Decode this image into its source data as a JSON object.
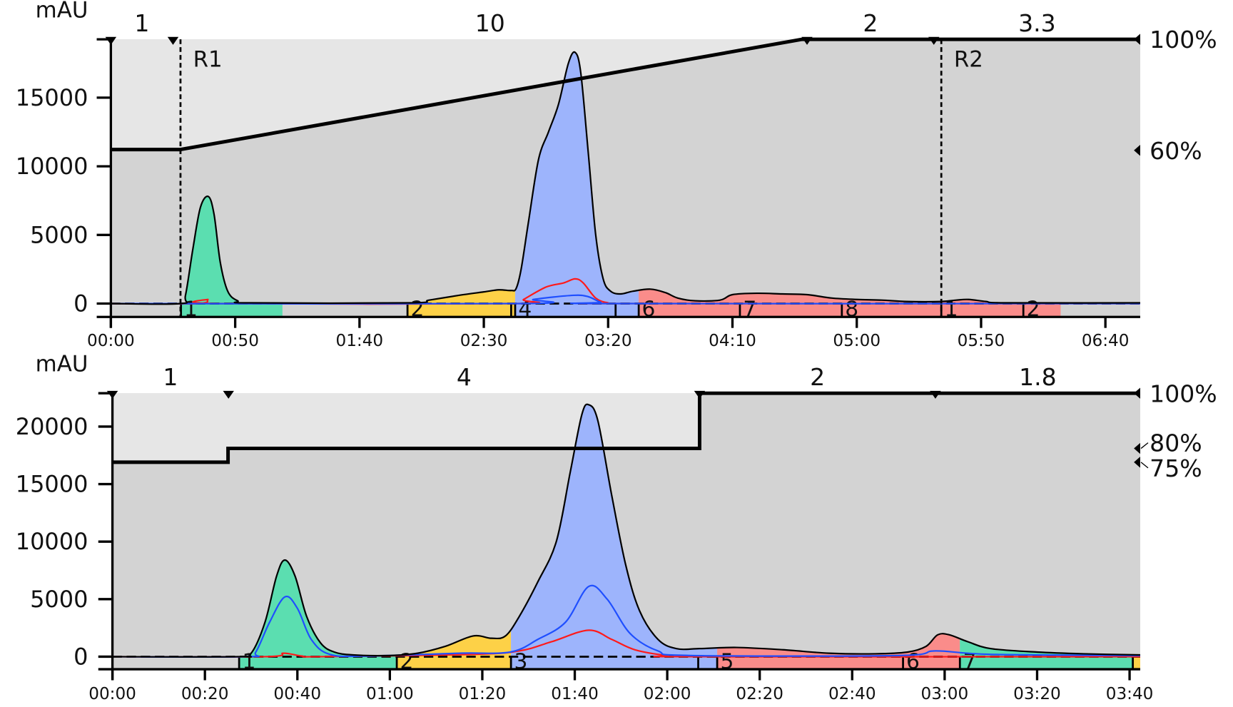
{
  "chart_data": [
    {
      "type": "area",
      "ylabel": "mAU",
      "xlim": [
        0,
        414
      ],
      "ylim": [
        0,
        19250
      ],
      "y_ticks": [
        0,
        5000,
        10000,
        15000
      ],
      "y_tick_labels": [
        "0",
        "5000",
        "10000",
        "15000"
      ],
      "x_ticks": [
        0,
        50,
        100,
        150,
        200,
        250,
        300,
        350,
        400
      ],
      "x_tick_labels": [
        "00:00",
        "00:50",
        "01:40",
        "02:30",
        "03:20",
        "04:10",
        "05:00",
        "05:50",
        "06:40"
      ],
      "right_axis": [
        {
          "value": 100,
          "label": "100%"
        },
        {
          "value": 60,
          "label": "60%"
        }
      ],
      "gradient_percent": [
        [
          0,
          60.3
        ],
        [
          28,
          60.3
        ],
        [
          278,
          100
        ],
        [
          414,
          100
        ]
      ],
      "phase_markers": [
        0,
        25,
        280,
        331,
        414
      ],
      "phase_labels": [
        "1",
        "10",
        "2",
        "3.3"
      ],
      "events": [
        {
          "t": 28,
          "label": "R1"
        },
        {
          "t": 334,
          "label": "R2"
        }
      ],
      "uv_trace": [
        [
          0,
          0
        ],
        [
          28,
          0
        ],
        [
          30,
          600
        ],
        [
          33,
          4000
        ],
        [
          36,
          7000
        ],
        [
          39.2,
          7800
        ],
        [
          41.5,
          6500
        ],
        [
          44,
          3000
        ],
        [
          47,
          900
        ],
        [
          51,
          200
        ],
        [
          56,
          50
        ],
        [
          120,
          50
        ],
        [
          128,
          250
        ],
        [
          140,
          600
        ],
        [
          150,
          850
        ],
        [
          156,
          1000
        ],
        [
          161,
          950
        ],
        [
          163,
          1100
        ],
        [
          165,
          2500
        ],
        [
          168,
          6000
        ],
        [
          172,
          10500
        ],
        [
          176,
          12500
        ],
        [
          180,
          14500
        ],
        [
          184,
          17500
        ],
        [
          186.7,
          18300
        ],
        [
          189,
          16800
        ],
        [
          192,
          11000
        ],
        [
          195,
          5000
        ],
        [
          198,
          1800
        ],
        [
          201,
          900
        ],
        [
          205,
          700
        ],
        [
          210,
          900
        ],
        [
          217,
          1050
        ],
        [
          223,
          800
        ],
        [
          228,
          400
        ],
        [
          235,
          200
        ],
        [
          245,
          250
        ],
        [
          250,
          650
        ],
        [
          260,
          750
        ],
        [
          270,
          700
        ],
        [
          280,
          650
        ],
        [
          290,
          400
        ],
        [
          300,
          300
        ],
        [
          310,
          250
        ],
        [
          320,
          150
        ],
        [
          334,
          150
        ],
        [
          340,
          250
        ],
        [
          345,
          300
        ],
        [
          352,
          150
        ],
        [
          360,
          50
        ],
        [
          414,
          50
        ]
      ],
      "red_trace": [
        [
          0,
          0
        ],
        [
          35,
          0
        ],
        [
          39,
          300
        ],
        [
          43,
          0
        ],
        [
          163,
          0
        ],
        [
          166,
          300
        ],
        [
          175,
          1200
        ],
        [
          182,
          1500
        ],
        [
          186.7,
          1800
        ],
        [
          190,
          1500
        ],
        [
          195,
          400
        ],
        [
          200,
          50
        ],
        [
          205,
          0
        ],
        [
          414,
          0
        ]
      ],
      "blue_trace": [
        [
          0,
          0
        ],
        [
          165,
          0
        ],
        [
          170,
          300
        ],
        [
          186,
          600
        ],
        [
          192,
          500
        ],
        [
          197,
          100
        ],
        [
          202,
          0
        ],
        [
          414,
          0
        ]
      ],
      "fractions": [
        {
          "start": 28.2,
          "end": 69,
          "label": "1",
          "color": "#5bdeb0"
        },
        {
          "start": 119.3,
          "end": 161,
          "label": "2",
          "color": "#fdd147"
        },
        {
          "start": 161,
          "end": 162.6,
          "label": null,
          "color": "#fdd147"
        },
        {
          "start": 162.6,
          "end": 203,
          "label": "4",
          "color": "#9db4fc"
        },
        {
          "start": 203,
          "end": 212.3,
          "label": null,
          "color": "#9db4fc"
        },
        {
          "start": 212.3,
          "end": 253,
          "label": "6",
          "color": "#fa8c8a"
        },
        {
          "start": 253,
          "end": 294,
          "label": "7",
          "color": "#fa8c8a"
        },
        {
          "start": 294,
          "end": 334,
          "label": "8",
          "color": "#fa8c8a"
        },
        {
          "start": 334,
          "end": 367,
          "label": "1",
          "color": "#fa8c8a"
        },
        {
          "start": 367,
          "end": 382,
          "label": "2",
          "color": "#fa8c8a"
        }
      ]
    },
    {
      "type": "area",
      "ylabel": "mAU",
      "xlim": [
        0,
        222.3
      ],
      "ylim": [
        0,
        22900
      ],
      "y_ticks": [
        0,
        5000,
        10000,
        15000,
        20000
      ],
      "y_tick_labels": [
        "0",
        "5000",
        "10000",
        "15000",
        "20000"
      ],
      "x_ticks": [
        0,
        20,
        40,
        60,
        80,
        100,
        120,
        140,
        160,
        180,
        200,
        220
      ],
      "x_tick_labels": [
        "00:00",
        "00:20",
        "00:40",
        "01:00",
        "01:20",
        "01:40",
        "02:00",
        "02:20",
        "02:40",
        "03:00",
        "03:20",
        "03:40"
      ],
      "right_axis": [
        {
          "value": 100,
          "label": "100%"
        },
        {
          "value": 80,
          "label": "80%"
        },
        {
          "value": 75,
          "label": "75%"
        }
      ],
      "gradient_percent": [
        [
          0,
          75
        ],
        [
          25,
          75
        ],
        [
          25,
          80
        ],
        [
          127,
          80
        ],
        [
          127,
          100
        ],
        [
          222.3,
          100
        ]
      ],
      "phase_markers": [
        0,
        25.1,
        127,
        178,
        222.3
      ],
      "phase_labels": [
        "1",
        "4",
        "2",
        "1.8"
      ],
      "events": [],
      "uv_trace": [
        [
          0,
          0
        ],
        [
          27,
          0
        ],
        [
          30,
          300
        ],
        [
          33,
          3000
        ],
        [
          35.5,
          7000
        ],
        [
          37.3,
          8400
        ],
        [
          39.5,
          7000
        ],
        [
          42,
          3500
        ],
        [
          45,
          1200
        ],
        [
          48,
          400
        ],
        [
          52,
          150
        ],
        [
          60,
          100
        ],
        [
          66,
          300
        ],
        [
          72,
          900
        ],
        [
          78,
          1800
        ],
        [
          82,
          1600
        ],
        [
          85,
          1800
        ],
        [
          88,
          3500
        ],
        [
          92,
          6500
        ],
        [
          96,
          10000
        ],
        [
          99,
          16000
        ],
        [
          101.5,
          21000
        ],
        [
          103,
          21900
        ],
        [
          105,
          20500
        ],
        [
          108,
          14000
        ],
        [
          111,
          8000
        ],
        [
          114,
          4000
        ],
        [
          118,
          1500
        ],
        [
          122,
          700
        ],
        [
          127,
          700
        ],
        [
          135,
          800
        ],
        [
          145,
          600
        ],
        [
          155,
          300
        ],
        [
          165,
          250
        ],
        [
          172,
          400
        ],
        [
          176,
          900
        ],
        [
          178.5,
          1900
        ],
        [
          181,
          1900
        ],
        [
          185,
          1300
        ],
        [
          190,
          700
        ],
        [
          200,
          400
        ],
        [
          210,
          250
        ],
        [
          222.3,
          150
        ]
      ],
      "blue_trace": [
        [
          0,
          0
        ],
        [
          29,
          0
        ],
        [
          31,
          400
        ],
        [
          34,
          3000
        ],
        [
          37.3,
          5200
        ],
        [
          40,
          4200
        ],
        [
          43,
          1500
        ],
        [
          47,
          200
        ],
        [
          55,
          50
        ],
        [
          75,
          300
        ],
        [
          86,
          400
        ],
        [
          92,
          1500
        ],
        [
          98,
          3000
        ],
        [
          103,
          6100
        ],
        [
          107,
          5000
        ],
        [
          112,
          2000
        ],
        [
          118,
          500
        ],
        [
          125,
          100
        ],
        [
          170,
          100
        ],
        [
          178,
          500
        ],
        [
          190,
          200
        ],
        [
          222.3,
          100
        ]
      ],
      "red_trace": [
        [
          0,
          0
        ],
        [
          33,
          0
        ],
        [
          37,
          300
        ],
        [
          41,
          50
        ],
        [
          45,
          0
        ],
        [
          78,
          200
        ],
        [
          88,
          500
        ],
        [
          95,
          1300
        ],
        [
          103,
          2300
        ],
        [
          108,
          1500
        ],
        [
          113,
          600
        ],
        [
          120,
          100
        ],
        [
          126,
          0
        ],
        [
          222.3,
          0
        ]
      ],
      "fractions": [
        {
          "start": 27.4,
          "end": 61.5,
          "label": "1",
          "color": "#5bdeb0"
        },
        {
          "start": 61.5,
          "end": 86.2,
          "label": "2",
          "color": "#fdd147"
        },
        {
          "start": 86.2,
          "end": 126.7,
          "label": "3",
          "color": "#9db4fc"
        },
        {
          "start": 126.7,
          "end": 130.8,
          "label": null,
          "color": "#9db4fc"
        },
        {
          "start": 130.8,
          "end": 171,
          "label": "5",
          "color": "#fa8c8a"
        },
        {
          "start": 171,
          "end": 183.3,
          "label": "6",
          "color": "#fa8c8a"
        },
        {
          "start": 183.3,
          "end": 220.7,
          "label": "7",
          "color": "#5bdeb0"
        },
        {
          "start": 220.7,
          "end": 222.3,
          "label": null,
          "color": "#fdd147"
        }
      ]
    }
  ],
  "colors": {
    "background": "#d3d3d3",
    "above_gradient": "#e6e6e6",
    "uv_line": "#000000",
    "blue_trace": "#1f4fff",
    "red_trace": "#ff1a1a"
  }
}
